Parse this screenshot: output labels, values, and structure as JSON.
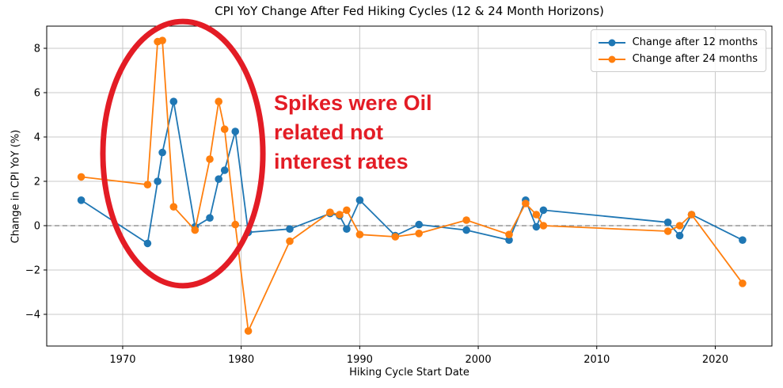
{
  "title": "CPI YoY Change After Fed Hiking Cycles (12 & 24 Month Horizons)",
  "xlabel": "Hiking Cycle Start Date",
  "ylabel": "Change in CPI YoY (%)",
  "annotation": {
    "text": "Spikes were Oil\nrelated not\ninterest rates",
    "color": "#e31c25"
  },
  "colors": {
    "series_12mo": "#1f77b4",
    "series_24mo": "#ff7f0e",
    "grid": "#c8c8c8",
    "zero_line": "#7f7f7f",
    "spine": "#000000",
    "annotation_red": "#e31c25",
    "background": "#ffffff"
  },
  "chart_data": {
    "type": "line",
    "title": "CPI YoY Change After Fed Hiking Cycles (12 & 24 Month Horizons)",
    "xlabel": "Hiking Cycle Start Date",
    "ylabel": "Change in CPI YoY (%)",
    "grid": true,
    "legend_position": "upper right",
    "zero_line": "dashed gray at y=0",
    "xlim": [
      1963.59,
      2024.78
    ],
    "ylim": [
      -5.43,
      9.0
    ],
    "x_ticks": [
      1970,
      1980,
      1990,
      2000,
      2010,
      2020
    ],
    "x_tick_labels": [
      "1970",
      "1980",
      "1990",
      "2000",
      "2010",
      "2020"
    ],
    "y_ticks": [
      -4,
      -2,
      0,
      2,
      4,
      6,
      8
    ],
    "y_tick_labels": [
      "−4",
      "−2",
      "0",
      "2",
      "4",
      "6",
      "8"
    ],
    "x": [
      1966.5,
      1972.1,
      1972.95,
      1973.35,
      1974.3,
      1976.1,
      1977.35,
      1978.1,
      1978.6,
      1979.5,
      1980.6,
      1984.1,
      1987.5,
      1988.3,
      1988.9,
      1990.0,
      1993.0,
      1995.0,
      1999.0,
      2002.6,
      2004.0,
      2004.9,
      2005.5,
      2016.0,
      2017.0,
      2018.0,
      2022.3
    ],
    "series": [
      {
        "name": "Change after 12 months",
        "color": "#1f77b4",
        "values": [
          1.15,
          -0.8,
          2.0,
          3.3,
          5.6,
          -0.05,
          0.35,
          2.1,
          2.5,
          4.25,
          -0.3,
          -0.15,
          0.55,
          0.45,
          -0.15,
          1.15,
          -0.45,
          0.05,
          -0.2,
          -0.65,
          1.15,
          -0.05,
          0.7,
          0.15,
          -0.45,
          0.5,
          -0.65
        ]
      },
      {
        "name": "Change after 24 months",
        "color": "#ff7f0e",
        "values": [
          2.2,
          1.85,
          8.3,
          8.35,
          0.85,
          -0.2,
          3.0,
          5.6,
          4.35,
          0.05,
          -4.75,
          -0.7,
          0.6,
          0.5,
          0.7,
          -0.4,
          -0.5,
          -0.35,
          0.25,
          -0.4,
          1.0,
          0.5,
          0.0,
          -0.25,
          0.0,
          0.5,
          -2.6
        ]
      }
    ],
    "annotation_ellipse": {
      "center_year": 1975.08,
      "center_value": 3.25,
      "radius_years": 6.75,
      "radius_units": 5.96,
      "color": "#e31c25",
      "stroke_width": 7
    },
    "annotation_text": "Spikes were Oil\nrelated not\ninterest rates"
  }
}
